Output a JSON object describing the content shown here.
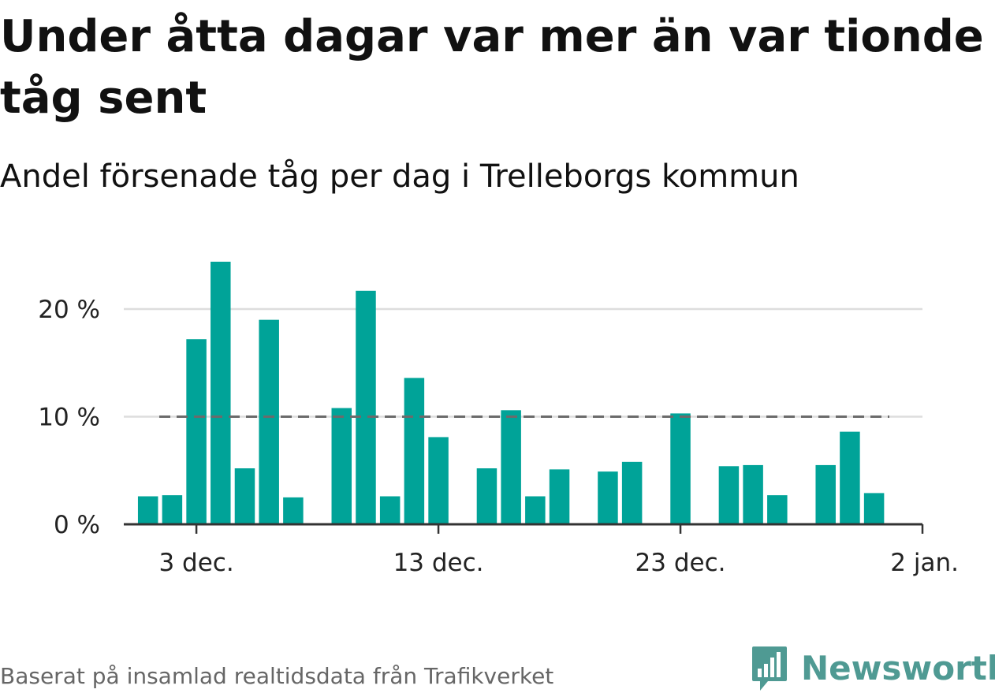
{
  "title": "Under åtta dagar var mer än var tionde tåg sent",
  "subtitle": "Andel försenade tåg per dag i Trelleborgs kommun",
  "footer": "Baserat på insamlad realtidsdata från Trafikverket",
  "brand": {
    "name": "Newsworthy",
    "icon": "newsworthy-logo-icon",
    "color": "#4f9a93"
  },
  "colors": {
    "bar": "#00a398",
    "reference_line": "#6b6b6b",
    "grid": "#dddddd",
    "axis": "#333333"
  },
  "chart_data": {
    "type": "bar",
    "x_start": "2023-11-30",
    "x_end": "2024-01-02",
    "bars": [
      {
        "date": "2023-12-01",
        "value": 2.6
      },
      {
        "date": "2023-12-02",
        "value": 2.7
      },
      {
        "date": "2023-12-03",
        "value": 17.2
      },
      {
        "date": "2023-12-04",
        "value": 24.4
      },
      {
        "date": "2023-12-05",
        "value": 5.2
      },
      {
        "date": "2023-12-06",
        "value": 19.0
      },
      {
        "date": "2023-12-07",
        "value": 2.5
      },
      {
        "date": "2023-12-09",
        "value": 10.8
      },
      {
        "date": "2023-12-10",
        "value": 21.7
      },
      {
        "date": "2023-12-11",
        "value": 2.6
      },
      {
        "date": "2023-12-12",
        "value": 13.6
      },
      {
        "date": "2023-12-13",
        "value": 8.1
      },
      {
        "date": "2023-12-15",
        "value": 5.2
      },
      {
        "date": "2023-12-16",
        "value": 10.6
      },
      {
        "date": "2023-12-17",
        "value": 2.6
      },
      {
        "date": "2023-12-18",
        "value": 5.1
      },
      {
        "date": "2023-12-20",
        "value": 4.9
      },
      {
        "date": "2023-12-21",
        "value": 5.8
      },
      {
        "date": "2023-12-23",
        "value": 10.3
      },
      {
        "date": "2023-12-25",
        "value": 5.4
      },
      {
        "date": "2023-12-26",
        "value": 5.5
      },
      {
        "date": "2023-12-27",
        "value": 2.7
      },
      {
        "date": "2023-12-29",
        "value": 5.5
      },
      {
        "date": "2023-12-30",
        "value": 8.6
      },
      {
        "date": "2023-12-31",
        "value": 2.9
      }
    ],
    "x_ticks": [
      {
        "date": "2023-12-03",
        "label": "3 dec."
      },
      {
        "date": "2023-12-13",
        "label": "13 dec."
      },
      {
        "date": "2023-12-23",
        "label": "23 dec."
      },
      {
        "date": "2024-01-02",
        "label": "2 jan."
      }
    ],
    "y_ticks": [
      {
        "value": 0,
        "label": "0 %"
      },
      {
        "value": 10,
        "label": "10 %"
      },
      {
        "value": 20,
        "label": "20 %"
      }
    ],
    "ylim": [
      0,
      25
    ],
    "reference_line": {
      "value": 10,
      "style": "dashed"
    },
    "grid": true,
    "xlabel": "",
    "ylabel": ""
  }
}
